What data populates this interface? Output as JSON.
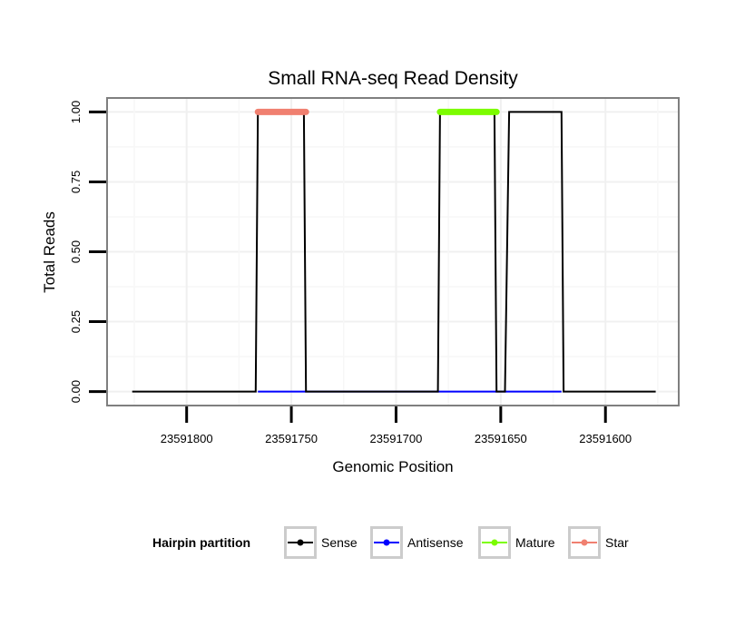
{
  "chart_data": {
    "type": "line",
    "title": "Small RNA-seq Read Density",
    "xlabel": "Genomic Position",
    "ylabel": "Total Reads",
    "x_reversed": true,
    "xlim": [
      23591838,
      23591565
    ],
    "ylim": [
      -0.05,
      1.05
    ],
    "x_ticks": [
      23591800,
      23591750,
      23591700,
      23591650,
      23591600
    ],
    "x_tick_labels": [
      "23591800",
      "23591750",
      "23591700",
      "23591650",
      "23591600"
    ],
    "y_ticks": [
      0,
      0.25,
      0.5,
      0.75,
      1
    ],
    "y_tick_labels": [
      "0.00",
      "0.25",
      "0.50",
      "0.75",
      "1.00"
    ],
    "grid": true,
    "legend": {
      "title": "Hairpin partition",
      "position": "bottom",
      "entries": [
        "Sense",
        "Antisense",
        "Mature",
        "Star"
      ]
    },
    "series": [
      {
        "name": "Sense",
        "color": "#000000",
        "x": [
          23591826,
          23591767,
          23591766,
          23591744,
          23591743,
          23591680,
          23591679,
          23591653,
          23591652,
          23591648,
          23591646,
          23591621,
          23591620,
          23591576
        ],
        "values": [
          0,
          0,
          1,
          1,
          0,
          0,
          1,
          1,
          0,
          0,
          1,
          1,
          0,
          0
        ]
      },
      {
        "name": "Antisense",
        "color": "#0000ff",
        "x": [
          23591766,
          23591743,
          23591679,
          23591621
        ],
        "values": [
          0,
          0,
          0,
          0
        ]
      },
      {
        "name": "Mature",
        "color": "#7cfc00",
        "x": [
          23591679,
          23591652
        ],
        "values": [
          1,
          1
        ]
      },
      {
        "name": "Star",
        "color": "#f08070",
        "x": [
          23591766,
          23591743
        ],
        "values": [
          1,
          1
        ]
      }
    ]
  }
}
